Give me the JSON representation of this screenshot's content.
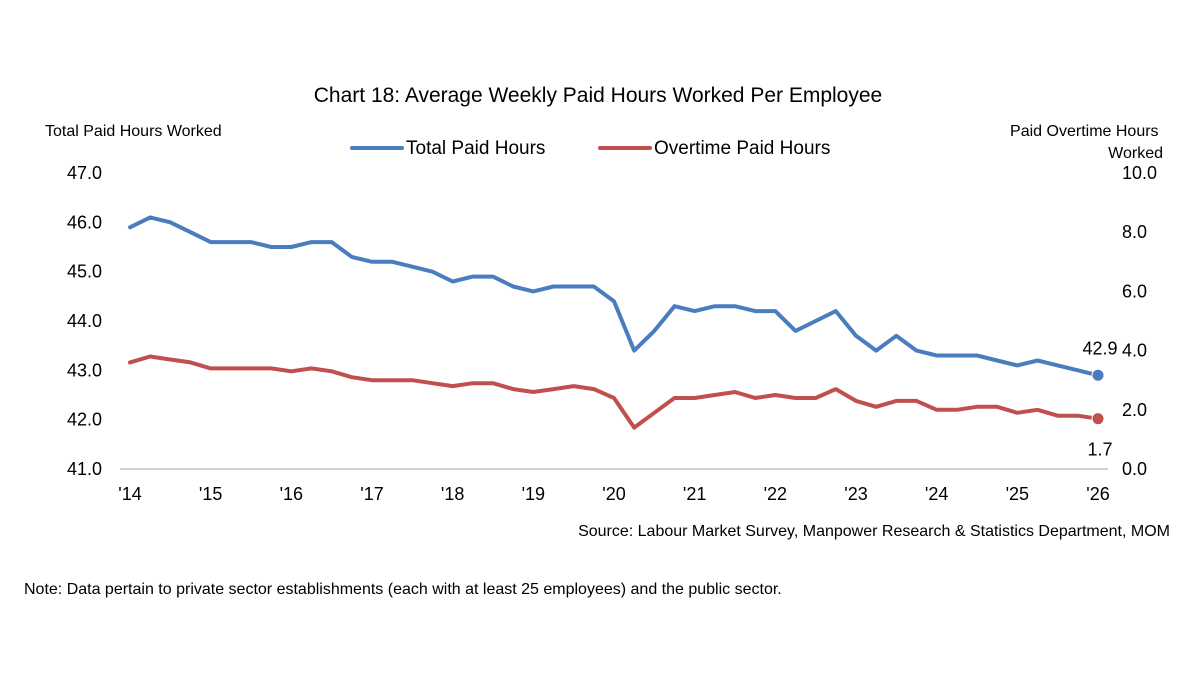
{
  "chart_data": {
    "type": "line",
    "title": "Chart 18: Average Weekly Paid Hours Worked Per Employee",
    "y_left_label": "Total Paid Hours Worked",
    "y_right_label": [
      "Paid Overtime Hours",
      "Worked"
    ],
    "y_left_range": [
      41.0,
      47.0
    ],
    "y_right_range": [
      0.0,
      10.0
    ],
    "y_left_ticks": [
      "47.0",
      "46.0",
      "45.0",
      "44.0",
      "43.0",
      "42.0",
      "41.0"
    ],
    "y_right_ticks": [
      "10.0",
      "8.0",
      "6.0",
      "4.0",
      "2.0",
      "0.0"
    ],
    "x_ticks": [
      "'14",
      "'15",
      "'16",
      "'17",
      "'18",
      "'19",
      "'20",
      "'21",
      "'22",
      "'23",
      "'24",
      "'25",
      "'26"
    ],
    "legend_position": "top-center",
    "grid": false,
    "series": [
      {
        "name": "Total Paid Hours",
        "axis": "left",
        "color": "#4a7dbf",
        "values": [
          45.9,
          46.1,
          46.0,
          45.8,
          45.6,
          45.6,
          45.6,
          45.5,
          45.5,
          45.6,
          45.6,
          45.3,
          45.2,
          45.2,
          45.1,
          45.0,
          44.8,
          44.9,
          44.9,
          44.7,
          44.6,
          44.7,
          44.7,
          44.7,
          44.4,
          43.4,
          43.8,
          44.3,
          44.2,
          44.3,
          44.3,
          44.2,
          44.2,
          43.8,
          44.0,
          44.2,
          43.7,
          43.4,
          43.7,
          43.4,
          43.3,
          43.3,
          43.3,
          43.2,
          43.1,
          43.2,
          43.1,
          43.0,
          42.9
        ],
        "end_label": "42.9"
      },
      {
        "name": "Overtime Paid Hours",
        "axis": "right",
        "color": "#c0504d",
        "values": [
          3.6,
          3.8,
          3.7,
          3.6,
          3.4,
          3.4,
          3.4,
          3.4,
          3.3,
          3.4,
          3.3,
          3.1,
          3.0,
          3.0,
          3.0,
          2.9,
          2.8,
          2.9,
          2.9,
          2.7,
          2.6,
          2.7,
          2.8,
          2.7,
          2.4,
          1.4,
          1.9,
          2.4,
          2.4,
          2.5,
          2.6,
          2.4,
          2.5,
          2.4,
          2.4,
          2.7,
          2.3,
          2.1,
          2.3,
          2.3,
          2.0,
          2.0,
          2.1,
          2.1,
          1.9,
          2.0,
          1.8,
          1.8,
          1.7
        ],
        "end_label": "1.7"
      }
    ],
    "source": "Source: Labour Market Survey, Manpower Research & Statistics Department, MOM",
    "note": "Note: Data pertain to private sector establishments (each with at least 25 employees) and the public sector."
  }
}
